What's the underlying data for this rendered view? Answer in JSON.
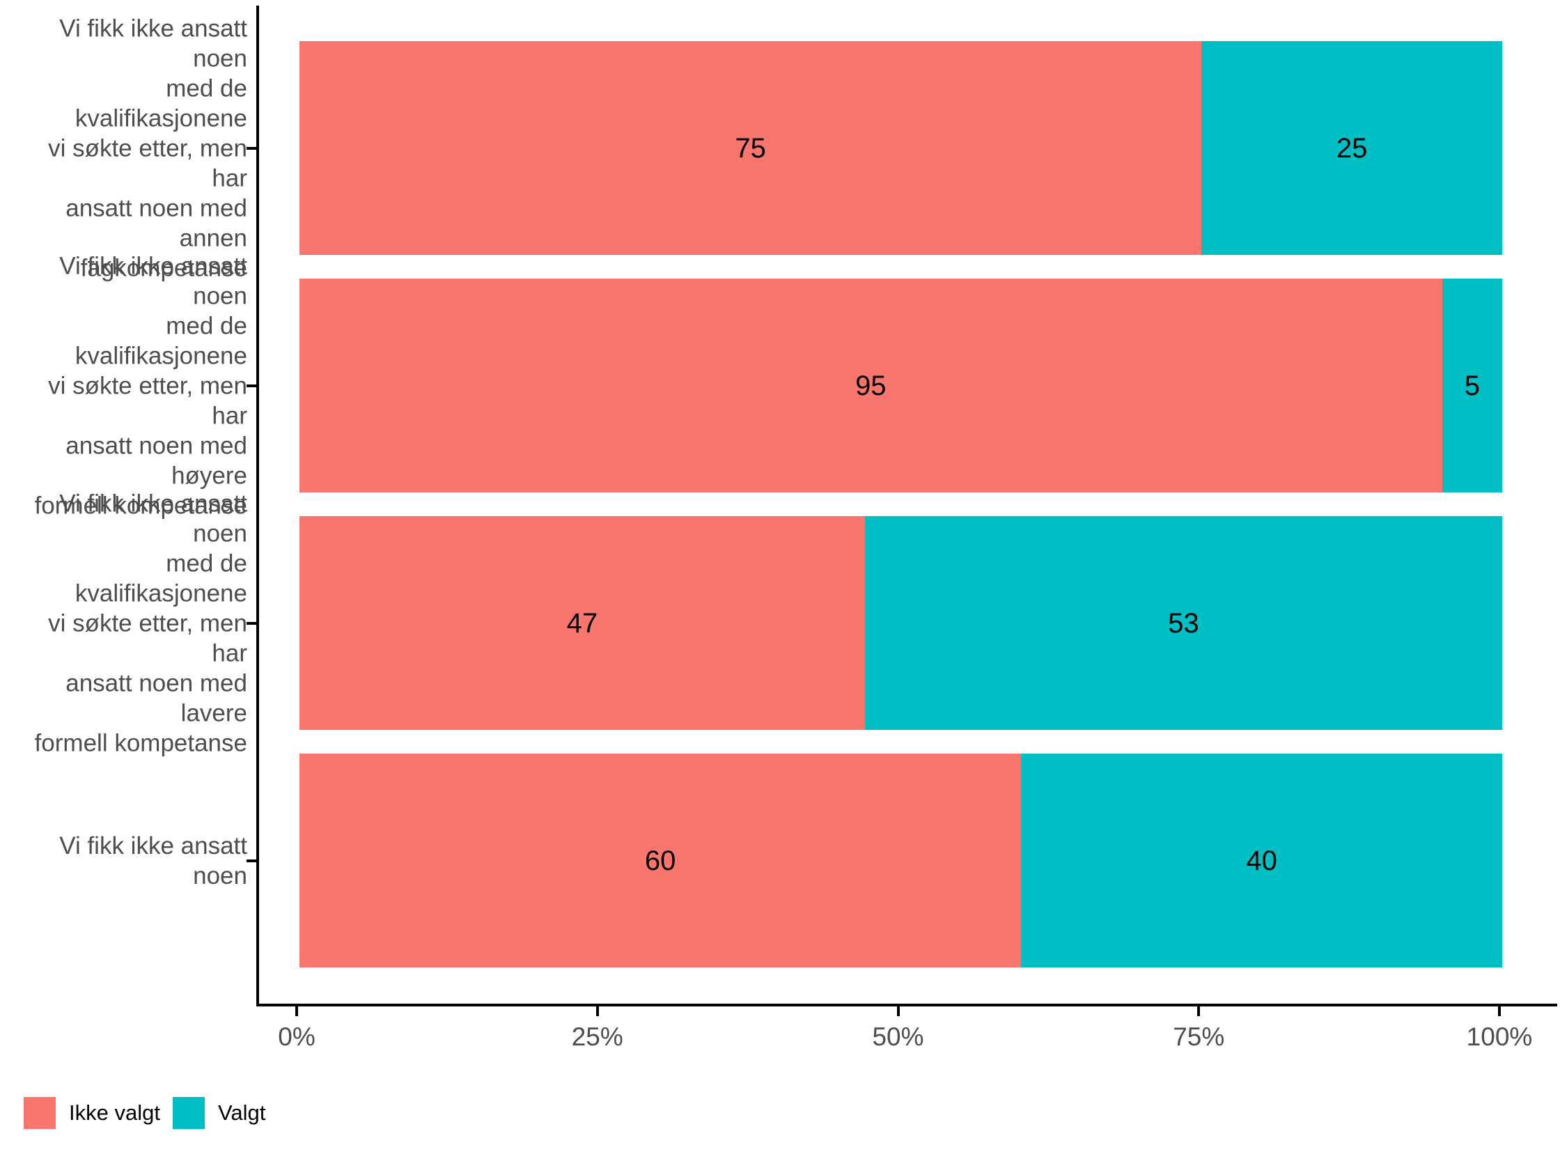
{
  "chart_data": {
    "type": "bar",
    "orientation": "horizontal",
    "stacked": true,
    "title": "",
    "xlabel": "",
    "ylabel": "",
    "xlim": [
      0,
      100
    ],
    "grid": false,
    "background": "#ffffff",
    "axis_line_color": "#000000",
    "tick_label_color": "#4d4d4d",
    "value_label_color": "#000000",
    "categories": [
      "Vi fikk ikke ansatt noen\nmed de kvalifikasjonene\nvi søkte etter, men har\nansatt noen med annen\nfagkompetanse",
      "Vi fikk ikke ansatt noen\nmed de kvalifikasjonene\nvi søkte etter, men har\nansatt noen med høyere\nformell kompetanse",
      "Vi fikk ikke ansatt noen\nmed de kvalifikasjonene\nvi søkte etter, men har\nansatt noen med lavere\nformell kompetanse",
      "Vi fikk ikke ansatt noen"
    ],
    "series": [
      {
        "name": "Ikke valgt",
        "color": "#F8766D",
        "values": [
          75,
          95,
          47,
          60
        ]
      },
      {
        "name": "Valgt",
        "color": "#00BFC4",
        "values": [
          25,
          5,
          53,
          40
        ]
      }
    ],
    "x_ticks": [
      {
        "value": 0,
        "label": "0%"
      },
      {
        "value": 25,
        "label": "25%"
      },
      {
        "value": 50,
        "label": "50%"
      },
      {
        "value": 75,
        "label": "75%"
      },
      {
        "value": 100,
        "label": "100%"
      }
    ],
    "legend_position": "bottom-left"
  },
  "legend": {
    "items": [
      {
        "label": "Ikke valgt",
        "color": "#F8766D"
      },
      {
        "label": "Valgt",
        "color": "#00BFC4"
      }
    ]
  }
}
